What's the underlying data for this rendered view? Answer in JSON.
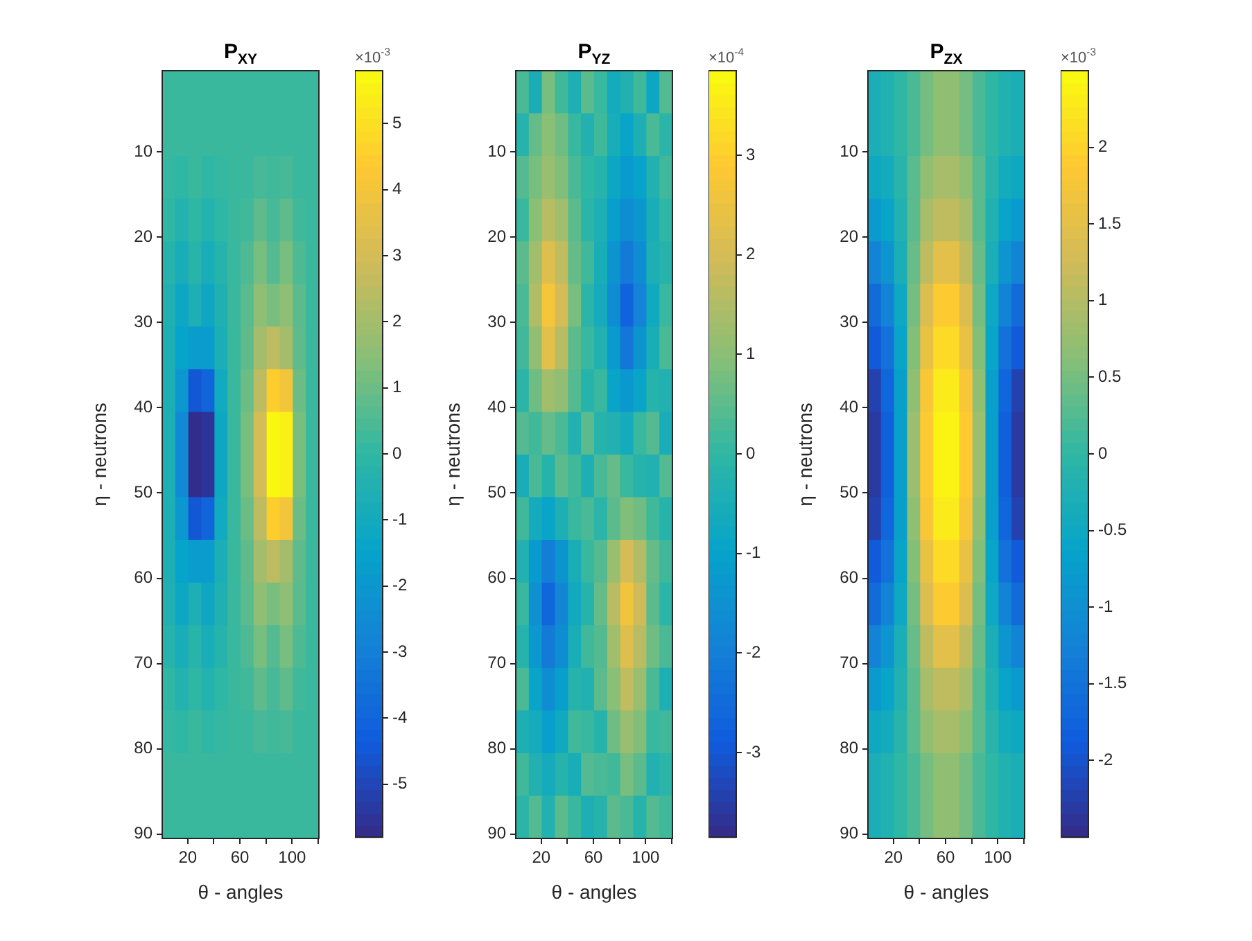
{
  "chart_data": [
    {
      "type": "heatmap",
      "title": "P$_{XY}$",
      "xlabel": "θ - angles",
      "ylabel": "η - neutrons",
      "clabel": "×10$^{-3}$",
      "xlim": [
        0.5,
        120.5
      ],
      "ylim": [
        90.5,
        0.5
      ],
      "xticks": [
        20,
        {
          "value": 40,
          "label": null
        },
        60,
        {
          "value": 80,
          "label": null
        },
        100,
        {
          "value": 120,
          "label": null
        }
      ],
      "yticks": [
        10,
        20,
        30,
        40,
        50,
        60,
        70,
        80,
        90
      ],
      "clim": [
        -5.8,
        5.8
      ],
      "cticks": [
        -5,
        -4,
        -3,
        -2,
        -1,
        0,
        1,
        2,
        3,
        4,
        5
      ],
      "cells": [
        [
          0.2,
          0.2,
          0.2,
          0.2,
          0.2,
          0.2,
          0.2,
          0.2,
          0.2,
          0.2,
          0.2,
          0.2
        ],
        [
          0.2,
          0.2,
          0.2,
          0.2,
          0.2,
          0.2,
          0.2,
          0.2,
          0.2,
          0.2,
          0.2,
          0.2
        ],
        [
          0.1,
          0,
          0.2,
          0,
          0.1,
          0.2,
          0.2,
          0.4,
          0.3,
          0.4,
          0.2,
          0.2
        ],
        [
          0,
          -0.4,
          0,
          -0.4,
          0,
          0.2,
          0.3,
          0.8,
          0.4,
          0.8,
          0.3,
          0.2
        ],
        [
          -0.3,
          -0.8,
          -0.2,
          -0.8,
          -0.3,
          0.2,
          0.5,
          1.2,
          0.6,
          1.2,
          0.5,
          0.2
        ],
        [
          -0.5,
          -1.2,
          -0.6,
          -1.2,
          -0.5,
          0.2,
          0.7,
          1.6,
          1.2,
          1.6,
          0.7,
          0.2
        ],
        [
          -0.6,
          -1.5,
          -1.8,
          -1.8,
          -0.7,
          0.2,
          0.8,
          2,
          2.5,
          2,
          0.8,
          0.2
        ],
        [
          -0.6,
          -2,
          -4.5,
          -4,
          -1,
          0.2,
          1,
          2.5,
          4.5,
          4,
          1,
          0.2
        ],
        [
          -0.6,
          -2.5,
          -5.7,
          -5.5,
          -1.2,
          0.2,
          1.2,
          3,
          5.7,
          5.5,
          1.2,
          0.2
        ],
        [
          -0.6,
          -2.5,
          -5.7,
          -5.5,
          -1.2,
          0.2,
          1.2,
          3,
          5.7,
          5.5,
          1.2,
          0.2
        ],
        [
          -0.6,
          -2,
          -4.5,
          -4,
          -1,
          0.2,
          1,
          2.5,
          4.5,
          4,
          1,
          0.2
        ],
        [
          -0.6,
          -1.5,
          -1.8,
          -1.8,
          -0.7,
          0.2,
          0.8,
          2,
          2.5,
          2,
          0.8,
          0.2
        ],
        [
          -0.5,
          -1.2,
          -0.6,
          -1.2,
          -0.5,
          0.2,
          0.7,
          1.6,
          1.2,
          1.6,
          0.7,
          0.2
        ],
        [
          -0.3,
          -0.8,
          -0.2,
          -0.8,
          -0.3,
          0.2,
          0.5,
          1.2,
          0.6,
          1.2,
          0.5,
          0.2
        ],
        [
          0,
          -0.4,
          0,
          -0.4,
          0,
          0.2,
          0.3,
          0.8,
          0.4,
          0.8,
          0.3,
          0.2
        ],
        [
          0.1,
          0,
          0.2,
          0,
          0.1,
          0.2,
          0.2,
          0.4,
          0.3,
          0.4,
          0.2,
          0.2
        ],
        [
          0.2,
          0.2,
          0.2,
          0.2,
          0.2,
          0.2,
          0.2,
          0.2,
          0.2,
          0.2,
          0.2,
          0.2
        ],
        [
          0.2,
          0.2,
          0.2,
          0.2,
          0.2,
          0.2,
          0.2,
          0.2,
          0.2,
          0.2,
          0.2,
          0.2
        ]
      ]
    },
    {
      "type": "heatmap",
      "title": "P$_{YZ}$",
      "xlabel": "θ - angles",
      "ylabel": "η - neutrons",
      "clabel": "×10$^{-4}$",
      "xlim": [
        0.5,
        120.5
      ],
      "ylim": [
        90.5,
        0.5
      ],
      "xticks": [
        20,
        {
          "value": 40,
          "label": null
        },
        60,
        {
          "value": 80,
          "label": null
        },
        100,
        {
          "value": 120,
          "label": null
        }
      ],
      "yticks": [
        10,
        20,
        30,
        40,
        50,
        60,
        70,
        80,
        90
      ],
      "clim": [
        -3.85,
        3.85
      ],
      "cticks": [
        -3,
        -2,
        -1,
        0,
        1,
        2,
        3
      ],
      "cells": [
        [
          0.3,
          -0.5,
          0.8,
          0.2,
          -0.4,
          0.5,
          0.1,
          -0.6,
          -0.3,
          0.2,
          -0.8,
          0.4
        ],
        [
          -0.2,
          0.6,
          1,
          0.7,
          0.1,
          -0.3,
          0.2,
          -0.5,
          -0.9,
          -0.4,
          0.3,
          -0.1
        ],
        [
          0.4,
          0.8,
          1.2,
          0.9,
          0.3,
          0,
          -0.2,
          -0.8,
          -1.2,
          -1,
          -0.3,
          0.2
        ],
        [
          0.1,
          1,
          1.6,
          1.3,
          0.5,
          -0.1,
          -0.4,
          -1.1,
          -1.6,
          -1.3,
          -0.5,
          0
        ],
        [
          0.5,
          1.3,
          2.2,
          1.7,
          0.6,
          0.2,
          -0.5,
          -1.4,
          -2.1,
          -1.6,
          -0.4,
          -0.2
        ],
        [
          0.3,
          1.5,
          2.7,
          2,
          0.8,
          -0.1,
          -0.6,
          -1.6,
          -2.7,
          -1.9,
          -0.7,
          0.1
        ],
        [
          0.2,
          1.1,
          2.3,
          1.6,
          0.5,
          0.1,
          -0.3,
          -1.2,
          -2.2,
          -1.4,
          -0.5,
          0.3
        ],
        [
          -0.1,
          0.7,
          1.3,
          1.1,
          0.4,
          -0.2,
          0.1,
          -0.9,
          -1.3,
          -0.9,
          -0.2,
          -0.3
        ],
        [
          0.4,
          0.2,
          0.6,
          0.3,
          -0.3,
          0.5,
          -0.2,
          -0.3,
          -0.6,
          0.1,
          0.4,
          -0.5
        ],
        [
          -0.5,
          0.3,
          -0.2,
          0.5,
          0.2,
          -0.4,
          0.3,
          0.6,
          0.1,
          -0.2,
          -0.3,
          0.4
        ],
        [
          0.2,
          -0.6,
          -0.9,
          -0.4,
          0.1,
          0.3,
          -0.1,
          0.5,
          0.9,
          0.7,
          0.2,
          -0.2
        ],
        [
          -0.3,
          -1.2,
          -2,
          -1.4,
          -0.5,
          0.1,
          0.4,
          1.2,
          2,
          1.5,
          0.6,
          0.2
        ],
        [
          0.1,
          -1.5,
          -2.6,
          -1.8,
          -0.7,
          -0.2,
          0.6,
          1.6,
          2.6,
          1.9,
          0.5,
          -0.1
        ],
        [
          -0.2,
          -1.3,
          -2.1,
          -1.6,
          -0.5,
          0.2,
          0.4,
          1.3,
          2.2,
          1.6,
          0.7,
          0.3
        ],
        [
          0.3,
          -0.9,
          -1.6,
          -1.1,
          -0.2,
          -0.3,
          0.5,
          1,
          1.7,
          1.2,
          0.3,
          -0.4
        ],
        [
          -0.4,
          -0.6,
          -1.1,
          -0.7,
          0.2,
          0.1,
          -0.2,
          0.7,
          1.2,
          0.9,
          0.1,
          0.2
        ],
        [
          0.2,
          -0.3,
          -0.6,
          -0.2,
          -0.5,
          0.4,
          0.3,
          0.2,
          0.8,
          0.5,
          -0.3,
          -0.1
        ],
        [
          -0.1,
          0.4,
          -0.3,
          0.5,
          0.1,
          -0.4,
          -0.2,
          0.5,
          0.3,
          -0.2,
          0.4,
          0.2
        ]
      ]
    },
    {
      "type": "heatmap",
      "title": "P$_{ZX}$",
      "xlabel": "θ - angles",
      "ylabel": "η - neutrons",
      "clabel": "×10$^{-3}$",
      "xlim": [
        0.5,
        120.5
      ],
      "ylim": [
        90.5,
        0.5
      ],
      "xticks": [
        20,
        {
          "value": 40,
          "label": null
        },
        60,
        {
          "value": 80,
          "label": null
        },
        100,
        {
          "value": 120,
          "label": null
        }
      ],
      "yticks": [
        10,
        20,
        30,
        40,
        50,
        60,
        70,
        80,
        90
      ],
      "clim": [
        -2.5,
        2.5
      ],
      "cticks": [
        -2,
        -1.5,
        -1,
        -0.5,
        0,
        0.5,
        1,
        1.5,
        2
      ],
      "cells": [
        [
          -0.3,
          -0.2,
          0,
          0.2,
          0.5,
          0.7,
          0.7,
          0.5,
          0.2,
          0,
          -0.2,
          -0.3
        ],
        [
          -0.3,
          -0.2,
          0,
          0.2,
          0.5,
          0.7,
          0.7,
          0.5,
          0.2,
          0,
          -0.2,
          -0.3
        ],
        [
          -0.5,
          -0.4,
          -0.1,
          0.3,
          0.7,
          0.9,
          0.9,
          0.7,
          0.3,
          -0.1,
          -0.4,
          -0.5
        ],
        [
          -0.8,
          -0.6,
          -0.2,
          0.3,
          0.9,
          1.1,
          1.1,
          0.9,
          0.3,
          -0.2,
          -0.6,
          -0.8
        ],
        [
          -1.2,
          -0.9,
          -0.3,
          0.4,
          1.1,
          1.5,
          1.5,
          1.1,
          0.4,
          -0.3,
          -0.9,
          -1.2
        ],
        [
          -1.6,
          -1.2,
          -0.5,
          0.5,
          1.4,
          1.9,
          1.9,
          1.4,
          0.5,
          -0.5,
          -1.2,
          -1.6
        ],
        [
          -1.9,
          -1.5,
          -0.6,
          0.6,
          1.6,
          2.1,
          2.1,
          1.6,
          0.6,
          -0.6,
          -1.5,
          -1.9
        ],
        [
          -2.2,
          -1.7,
          -0.7,
          0.7,
          1.8,
          2.3,
          2.3,
          1.8,
          0.7,
          -0.7,
          -1.7,
          -2.2
        ],
        [
          -2.3,
          -1.8,
          -0.7,
          0.8,
          1.9,
          2.4,
          2.4,
          1.9,
          0.8,
          -0.7,
          -1.8,
          -2.3
        ],
        [
          -2.3,
          -1.8,
          -0.7,
          0.8,
          1.9,
          2.4,
          2.4,
          1.9,
          0.8,
          -0.7,
          -1.8,
          -2.3
        ],
        [
          -2.2,
          -1.7,
          -0.7,
          0.7,
          1.8,
          2.3,
          2.3,
          1.8,
          0.7,
          -0.7,
          -1.7,
          -2.2
        ],
        [
          -1.9,
          -1.5,
          -0.6,
          0.6,
          1.6,
          2.1,
          2.1,
          1.6,
          0.6,
          -0.6,
          -1.5,
          -1.9
        ],
        [
          -1.6,
          -1.2,
          -0.5,
          0.5,
          1.4,
          1.9,
          1.9,
          1.4,
          0.5,
          -0.5,
          -1.2,
          -1.6
        ],
        [
          -1.2,
          -0.9,
          -0.3,
          0.4,
          1.1,
          1.5,
          1.5,
          1.1,
          0.4,
          -0.3,
          -0.9,
          -1.2
        ],
        [
          -0.8,
          -0.6,
          -0.2,
          0.3,
          0.9,
          1.1,
          1.1,
          0.9,
          0.3,
          -0.2,
          -0.6,
          -0.8
        ],
        [
          -0.5,
          -0.4,
          -0.1,
          0.3,
          0.7,
          0.9,
          0.9,
          0.7,
          0.3,
          -0.1,
          -0.4,
          -0.5
        ],
        [
          -0.3,
          -0.2,
          0,
          0.2,
          0.5,
          0.7,
          0.7,
          0.5,
          0.2,
          0,
          -0.2,
          -0.3
        ],
        [
          -0.3,
          -0.2,
          0,
          0.2,
          0.5,
          0.7,
          0.7,
          0.5,
          0.2,
          0,
          -0.2,
          -0.3
        ]
      ]
    }
  ]
}
